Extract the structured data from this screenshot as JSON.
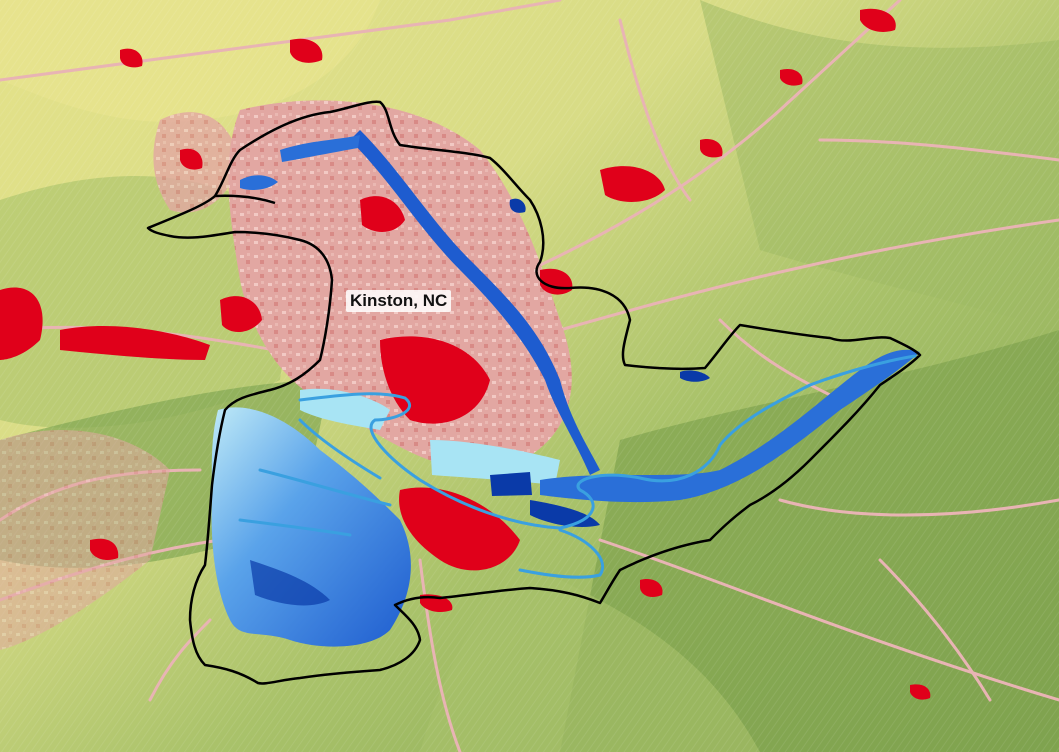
{
  "map": {
    "place_label": "Kinston, NC",
    "colors": {
      "terrain_low": "#e6e48a",
      "terrain_high": "#7fa34f",
      "urban_high": "#e0001a",
      "urban_low": "#e8a8a8",
      "roads": "#e8b4b4",
      "flood_deep": "#0a3aa8",
      "flood_mid": "#2a6fd8",
      "flood_shallow": "#a8e4f4",
      "river": "#3aa0e0",
      "boundary": "#000000"
    },
    "layers": [
      "terrain",
      "developed-land",
      "roads",
      "flood-extent",
      "river",
      "study-boundary"
    ]
  }
}
